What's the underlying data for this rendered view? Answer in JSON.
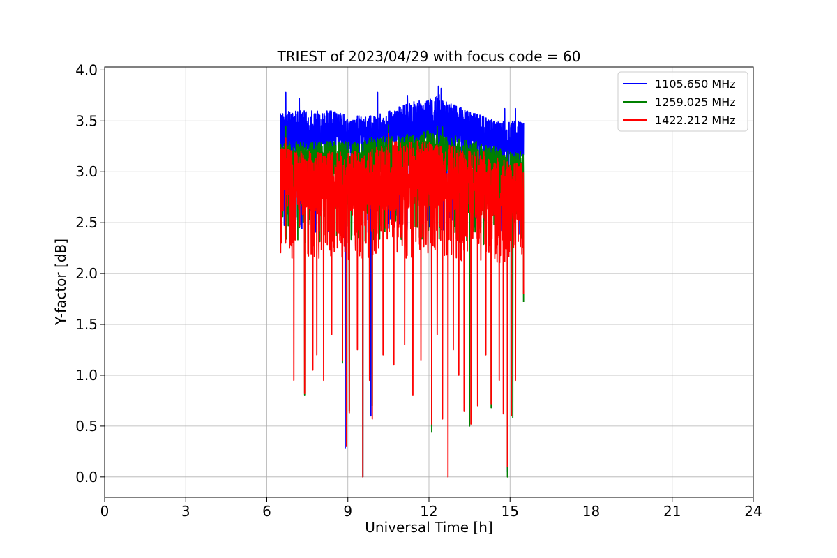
{
  "chart_data": {
    "type": "line",
    "title": "TRIEST of 2023/04/29 with focus code = 60",
    "xlabel": "Universal Time [h]",
    "ylabel": "Y-factor [dB]",
    "xlim": [
      0,
      24
    ],
    "ylim": [
      -0.2,
      4.03
    ],
    "xticks": [
      0,
      3,
      6,
      9,
      12,
      15,
      18,
      21,
      24
    ],
    "yticks": [
      0.0,
      0.5,
      1.0,
      1.5,
      2.0,
      2.5,
      3.0,
      3.5,
      4.0
    ],
    "ytick_labels": [
      "0.0",
      "0.5",
      "1.0",
      "1.5",
      "2.0",
      "2.5",
      "3.0",
      "3.5",
      "4.0"
    ],
    "grid": true,
    "legend_position": "top-right",
    "x_range_of_data": [
      6.5,
      15.5
    ],
    "series": [
      {
        "name": "1105.650 MHz",
        "color": "#0000ff",
        "band": [
          [
            6.5,
            3.2,
            3.6
          ],
          [
            7.0,
            3.15,
            3.6
          ],
          [
            7.5,
            3.15,
            3.6
          ],
          [
            8.0,
            3.1,
            3.6
          ],
          [
            8.5,
            3.15,
            3.6
          ],
          [
            9.0,
            3.1,
            3.55
          ],
          [
            9.5,
            3.15,
            3.55
          ],
          [
            10.0,
            3.15,
            3.55
          ],
          [
            10.5,
            3.2,
            3.6
          ],
          [
            11.0,
            3.2,
            3.65
          ],
          [
            11.5,
            3.2,
            3.7
          ],
          [
            12.0,
            3.2,
            3.7
          ],
          [
            12.3,
            3.25,
            3.8
          ],
          [
            12.5,
            3.2,
            3.7
          ],
          [
            13.0,
            3.2,
            3.65
          ],
          [
            13.5,
            3.2,
            3.6
          ],
          [
            14.0,
            3.15,
            3.55
          ],
          [
            14.5,
            3.1,
            3.5
          ],
          [
            15.0,
            3.05,
            3.5
          ],
          [
            15.5,
            3.1,
            3.5
          ]
        ],
        "peaks": [
          [
            6.7,
            3.78
          ],
          [
            7.2,
            3.72
          ],
          [
            10.1,
            3.78
          ],
          [
            11.2,
            3.75
          ],
          [
            12.35,
            3.84
          ],
          [
            12.45,
            3.82
          ],
          [
            14.8,
            3.62
          ],
          [
            15.2,
            3.62
          ]
        ],
        "dips": [
          [
            8.9,
            0.28
          ],
          [
            9.55,
            0.0
          ],
          [
            9.85,
            0.6
          ],
          [
            12.1,
            0.55
          ],
          [
            14.9,
            0.05
          ]
        ]
      },
      {
        "name": "1259.025 MHz",
        "color": "#008000",
        "band": [
          [
            6.5,
            2.95,
            3.3
          ],
          [
            7.0,
            2.9,
            3.3
          ],
          [
            7.5,
            2.85,
            3.3
          ],
          [
            8.0,
            2.85,
            3.3
          ],
          [
            8.5,
            2.9,
            3.3
          ],
          [
            9.0,
            2.9,
            3.3
          ],
          [
            9.5,
            2.9,
            3.3
          ],
          [
            10.0,
            2.9,
            3.35
          ],
          [
            10.5,
            2.95,
            3.35
          ],
          [
            11.0,
            2.95,
            3.35
          ],
          [
            11.5,
            2.95,
            3.4
          ],
          [
            12.0,
            2.95,
            3.4
          ],
          [
            12.5,
            2.95,
            3.35
          ],
          [
            13.0,
            2.9,
            3.35
          ],
          [
            13.5,
            2.9,
            3.3
          ],
          [
            14.0,
            2.85,
            3.3
          ],
          [
            14.5,
            2.85,
            3.25
          ],
          [
            15.0,
            2.8,
            3.2
          ],
          [
            15.5,
            2.85,
            3.2
          ]
        ],
        "peaks": [
          [
            6.7,
            3.45
          ],
          [
            10.5,
            3.46
          ],
          [
            12.3,
            3.45
          ],
          [
            12.5,
            3.44
          ]
        ],
        "dips": [
          [
            7.4,
            0.8
          ],
          [
            8.8,
            1.12
          ],
          [
            9.05,
            0.65
          ],
          [
            9.55,
            0.0
          ],
          [
            9.9,
            0.7
          ],
          [
            12.1,
            0.44
          ],
          [
            13.5,
            0.5
          ],
          [
            14.3,
            0.68
          ],
          [
            14.9,
            0.0
          ],
          [
            15.1,
            0.58
          ],
          [
            15.5,
            1.72
          ]
        ]
      },
      {
        "name": "1422.212 MHz",
        "color": "#ff0000",
        "band": [
          [
            6.5,
            2.5,
            3.25
          ],
          [
            7.0,
            2.5,
            3.2
          ],
          [
            7.5,
            2.45,
            3.2
          ],
          [
            8.0,
            2.45,
            3.2
          ],
          [
            8.5,
            2.5,
            3.2
          ],
          [
            9.0,
            2.45,
            3.2
          ],
          [
            9.5,
            2.5,
            3.2
          ],
          [
            10.0,
            2.5,
            3.25
          ],
          [
            10.5,
            2.5,
            3.3
          ],
          [
            11.0,
            2.5,
            3.3
          ],
          [
            11.5,
            2.5,
            3.3
          ],
          [
            12.0,
            2.5,
            3.3
          ],
          [
            12.5,
            2.5,
            3.3
          ],
          [
            13.0,
            2.45,
            3.25
          ],
          [
            13.5,
            2.45,
            3.2
          ],
          [
            14.0,
            2.4,
            3.2
          ],
          [
            14.5,
            2.4,
            3.15
          ],
          [
            15.0,
            2.35,
            3.1
          ],
          [
            15.5,
            2.4,
            3.1
          ]
        ],
        "peaks": [
          [
            6.7,
            3.33
          ],
          [
            10.5,
            3.38
          ],
          [
            12.3,
            3.36
          ]
        ],
        "dips": [
          [
            7.0,
            0.95
          ],
          [
            7.4,
            0.82
          ],
          [
            7.7,
            1.05
          ],
          [
            7.85,
            1.2
          ],
          [
            8.1,
            0.95
          ],
          [
            8.4,
            1.4
          ],
          [
            8.8,
            1.15
          ],
          [
            8.95,
            0.3
          ],
          [
            9.05,
            0.63
          ],
          [
            9.35,
            1.25
          ],
          [
            9.55,
            0.0
          ],
          [
            9.8,
            0.95
          ],
          [
            9.9,
            0.57
          ],
          [
            10.3,
            1.2
          ],
          [
            10.7,
            1.1
          ],
          [
            11.1,
            1.3
          ],
          [
            11.4,
            0.8
          ],
          [
            11.7,
            1.15
          ],
          [
            12.1,
            0.52
          ],
          [
            12.3,
            1.4
          ],
          [
            12.5,
            0.57
          ],
          [
            12.7,
            0.0
          ],
          [
            12.9,
            1.25
          ],
          [
            13.1,
            1.0
          ],
          [
            13.3,
            0.65
          ],
          [
            13.55,
            0.52
          ],
          [
            13.8,
            0.7
          ],
          [
            14.1,
            1.2
          ],
          [
            14.3,
            0.72
          ],
          [
            14.6,
            0.95
          ],
          [
            14.75,
            0.62
          ],
          [
            14.9,
            0.1
          ],
          [
            15.05,
            0.6
          ],
          [
            15.2,
            0.95
          ],
          [
            15.5,
            1.8
          ]
        ]
      }
    ]
  }
}
